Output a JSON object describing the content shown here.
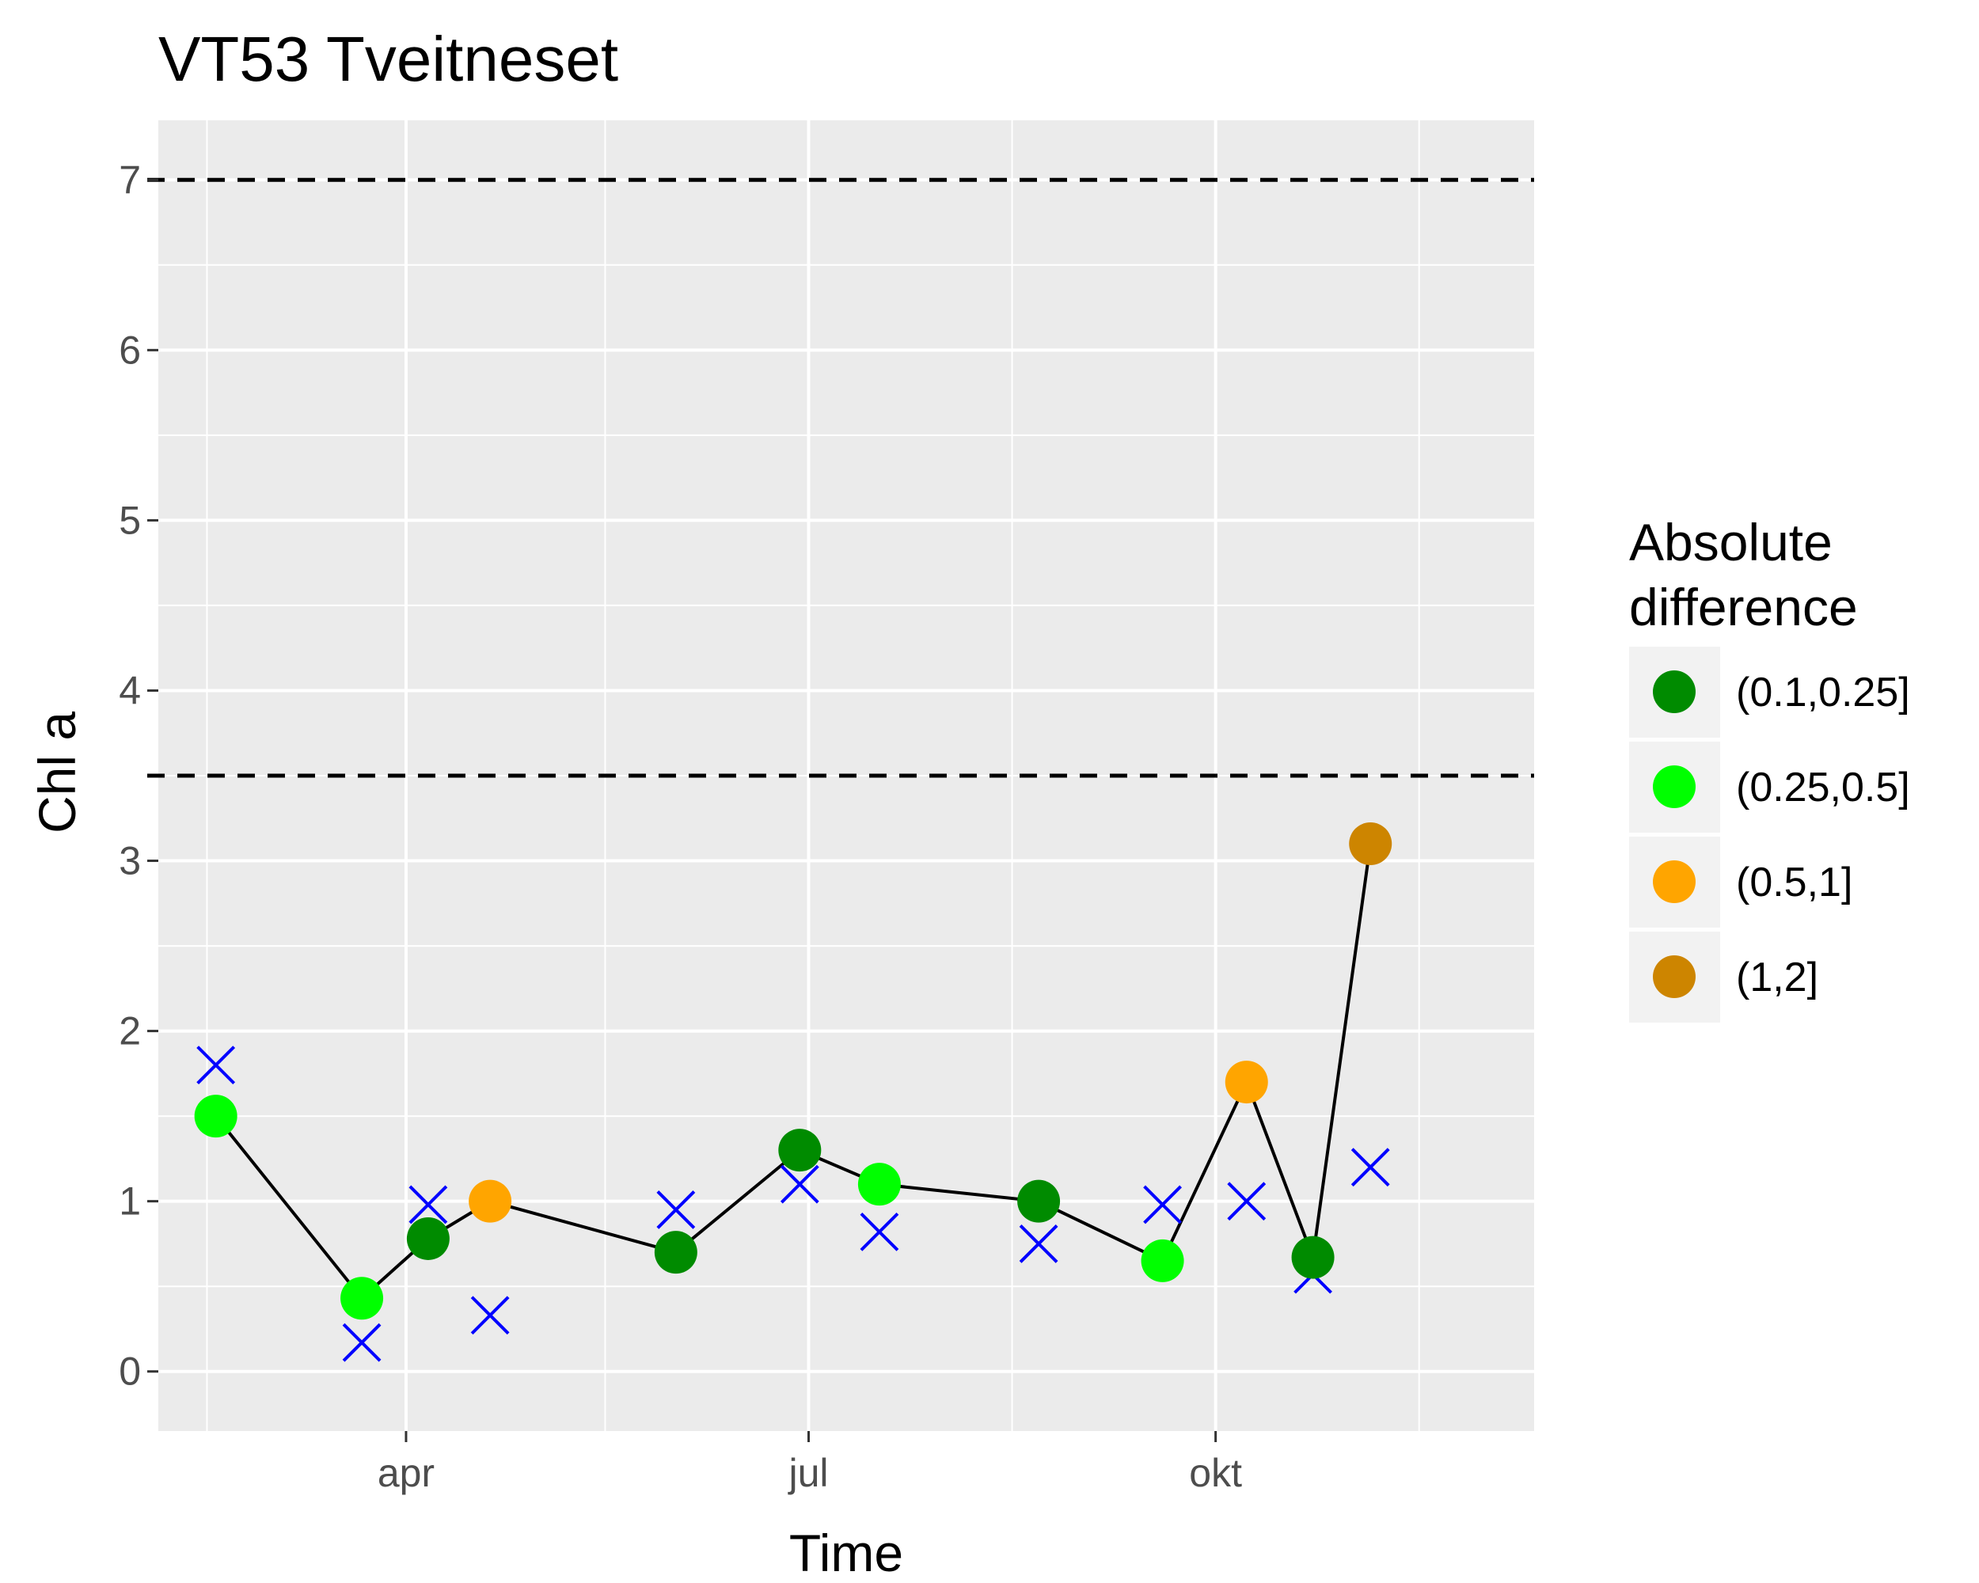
{
  "chart_data": {
    "type": "scatter",
    "title": "VT53 Tveitneset",
    "xlabel": "Time",
    "ylabel": "Chl a",
    "x_ticks": [
      {
        "label": "apr",
        "date": "2017-04-01"
      },
      {
        "label": "jul",
        "date": "2017-07-01"
      },
      {
        "label": "okt",
        "date": "2017-10-01"
      }
    ],
    "xlim": [
      "2017-02-04",
      "2017-12-12"
    ],
    "ylim": [
      -0.35,
      7.35
    ],
    "y_ticks": [
      0,
      1,
      2,
      3,
      4,
      5,
      6,
      7
    ],
    "grid": true,
    "reference_lines": [
      {
        "y": 7,
        "style": "dashed"
      },
      {
        "y": 3.5,
        "style": "dashed"
      }
    ],
    "series": [
      {
        "points": [
          {
            "x": "2017-02-17",
            "y": 1.5,
            "class": "(0.25,0.5]"
          },
          {
            "x": "2017-03-22",
            "y": 0.43,
            "class": "(0.25,0.5]"
          },
          {
            "x": "2017-04-06",
            "y": 0.78,
            "class": "(0.1,0.25]"
          },
          {
            "x": "2017-04-20",
            "y": 1.0,
            "class": "(0.5,1]"
          },
          {
            "x": "2017-06-01",
            "y": 0.7,
            "class": "(0.1,0.25]"
          },
          {
            "x": "2017-06-29",
            "y": 1.3,
            "class": "(0.1,0.25]"
          },
          {
            "x": "2017-07-17",
            "y": 1.1,
            "class": "(0.25,0.5]"
          },
          {
            "x": "2017-08-22",
            "y": 1.0,
            "class": "(0.1,0.25]"
          },
          {
            "x": "2017-09-19",
            "y": 0.65,
            "class": "(0.25,0.5]"
          },
          {
            "x": "2017-10-08",
            "y": 1.7,
            "class": "(0.5,1]"
          },
          {
            "x": "2017-10-23",
            "y": 0.67,
            "class": "(0.1,0.25]"
          },
          {
            "x": "2017-11-05",
            "y": 3.1,
            "class": "(1,2]"
          }
        ]
      },
      {
        "marker": "x",
        "color": "#0000ff",
        "points": [
          {
            "x": "2017-02-17",
            "y": 1.8
          },
          {
            "x": "2017-03-22",
            "y": 0.17
          },
          {
            "x": "2017-04-06",
            "y": 0.98
          },
          {
            "x": "2017-04-20",
            "y": 0.33
          },
          {
            "x": "2017-06-01",
            "y": 0.95
          },
          {
            "x": "2017-06-29",
            "y": 1.1
          },
          {
            "x": "2017-07-17",
            "y": 0.82
          },
          {
            "x": "2017-08-22",
            "y": 0.75
          },
          {
            "x": "2017-09-19",
            "y": 0.98
          },
          {
            "x": "2017-10-08",
            "y": 1.0
          },
          {
            "x": "2017-10-23",
            "y": 0.57
          },
          {
            "x": "2017-11-05",
            "y": 1.2
          }
        ]
      }
    ],
    "legend": {
      "title_lines": [
        "Absolute",
        "difference"
      ],
      "placement": "right",
      "entries": [
        {
          "label": "(0.1,0.25]",
          "color": "#008b00"
        },
        {
          "label": "(0.25,0.5]",
          "color": "#00ff00"
        },
        {
          "label": "(0.5,1]",
          "color": "#ffa500"
        },
        {
          "label": "(1,2]",
          "color": "#cd8500"
        }
      ]
    },
    "colors": {
      "panel_background": "#ebebeb",
      "grid_major": "#ffffff",
      "connector_line": "#000000",
      "reference_line": "#000000",
      "legend_key_background": "#f2f2f2"
    }
  }
}
